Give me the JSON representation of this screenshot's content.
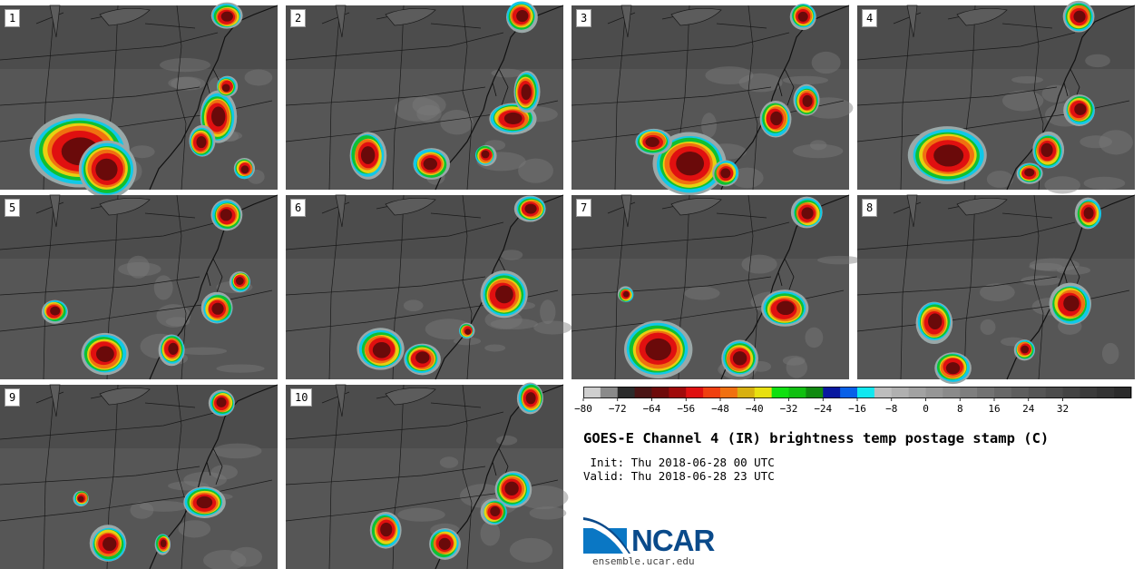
{
  "title": "GOES-E Channel 4 (IR) brightness temp postage stamp (C)",
  "init_text": " Init: Thu 2018-06-28 00 UTC",
  "valid_text": "Valid: Thu 2018-06-28 23 UTC",
  "logo_text": "NCAR",
  "site": "ensemble.ucar.edu",
  "panels": [
    {
      "label": "1"
    },
    {
      "label": "2"
    },
    {
      "label": "3"
    },
    {
      "label": "4"
    },
    {
      "label": "5"
    },
    {
      "label": "6"
    },
    {
      "label": "7"
    },
    {
      "label": "8"
    },
    {
      "label": "9"
    },
    {
      "label": "10"
    }
  ],
  "colorbar": {
    "min": -80,
    "max": 48,
    "tick_labels": [
      "−80",
      "−72",
      "−64",
      "−56",
      "−48",
      "−40",
      "−32",
      "−24",
      "−16",
      "−8",
      "0",
      "8",
      "16",
      "24",
      "32"
    ],
    "colors": [
      "#cfcfcf",
      "#8a8a8a",
      "#2b2b2b",
      "#4a1414",
      "#6e0a0a",
      "#a00a0a",
      "#e01010",
      "#f04010",
      "#f07010",
      "#d8b010",
      "#e8e010",
      "#10e010",
      "#10c010",
      "#108a10",
      "#0818a0",
      "#0860e8",
      "#10e8f0",
      "#bdbdbd",
      "#b0b0b0",
      "#a2a2a2",
      "#969696",
      "#8a8a8a",
      "#7e7e7e",
      "#727272",
      "#686868",
      "#5e5e5e",
      "#555555",
      "#4c4c4c",
      "#434343",
      "#3b3b3b",
      "#333333",
      "#2b2b2b"
    ]
  }
}
